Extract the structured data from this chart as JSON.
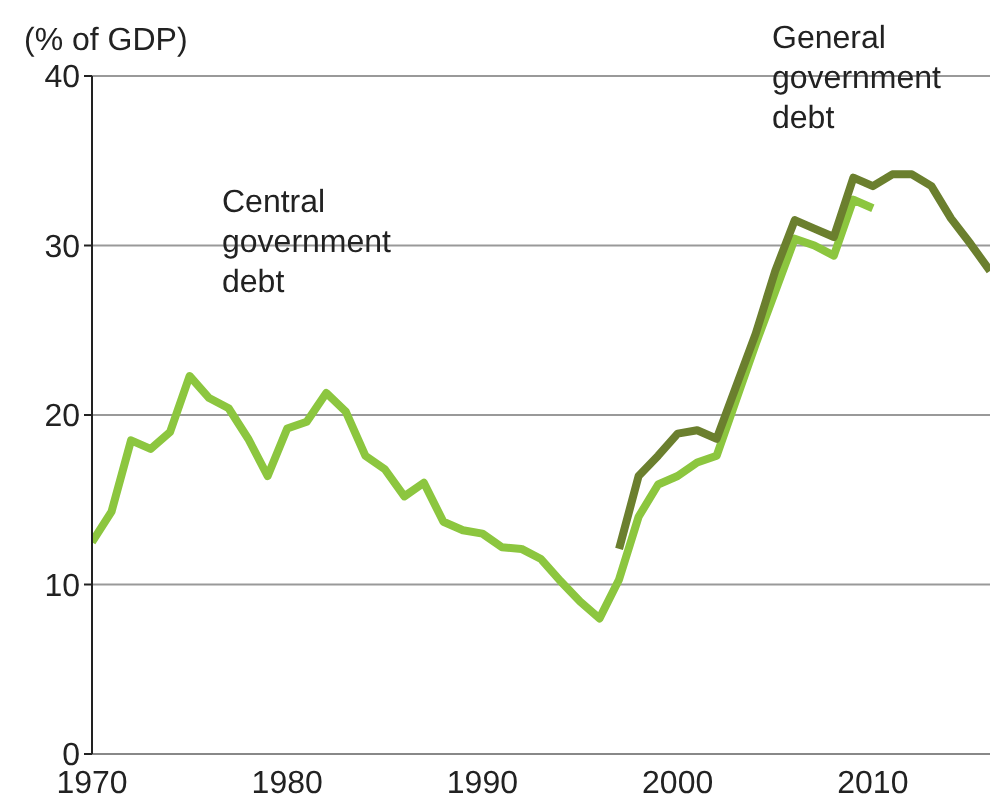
{
  "chart_data": {
    "type": "line",
    "ylabel": "(% of GDP)",
    "xlim": [
      1970,
      2016
    ],
    "xticks": [
      1970,
      1980,
      1990,
      2000,
      2010
    ],
    "ylim": [
      0,
      40
    ],
    "yticks": [
      0,
      10,
      20,
      30,
      40
    ],
    "grid": "y",
    "marker": "none",
    "line_style": "solid",
    "annotations": [
      "Central\ngovernment\ndebt",
      "General\ngovernment\ndebt"
    ],
    "series": [
      {
        "color": "#8cc63f",
        "x": [
          1970,
          1971,
          1972,
          1973,
          1974,
          1975,
          1976,
          1977,
          1978,
          1979,
          1980,
          1981,
          1982,
          1983,
          1984,
          1985,
          1986,
          1987,
          1988,
          1989,
          1990,
          1991,
          1992,
          1993,
          1994,
          1995,
          1996,
          1997,
          1998,
          1999,
          2000,
          2001,
          2002,
          2003,
          2004,
          2005,
          2006,
          2007,
          2008,
          2009,
          2010
        ],
        "values": [
          12.5,
          14.3,
          18.5,
          18,
          19,
          22.3,
          21,
          20.4,
          18.6,
          16.4,
          19.2,
          19.6,
          21.3,
          20.2,
          17.6,
          16.8,
          15.2,
          16,
          13.7,
          13.2,
          13,
          12.2,
          12.1,
          11.5,
          10.2,
          9,
          8,
          10.3,
          14,
          15.9,
          16.4,
          17.2,
          17.6,
          20.9,
          24.2,
          27.3,
          30.4,
          30,
          29.4,
          32.7,
          32.2
        ]
      },
      {
        "color": "#6b7f2e",
        "x": [
          1997,
          1998,
          1999,
          2000,
          2001,
          2002,
          2003,
          2004,
          2005,
          2006,
          2007,
          2008,
          2009,
          2010,
          2011,
          2012,
          2013,
          2014,
          2015,
          2016
        ],
        "values": [
          12.1,
          16.4,
          17.6,
          18.9,
          19.1,
          18.6,
          21.7,
          24.8,
          28.5,
          31.5,
          31,
          30.5,
          34,
          33.5,
          34.2,
          34.2,
          33.5,
          31.6,
          30.1,
          28.5
        ]
      }
    ]
  }
}
